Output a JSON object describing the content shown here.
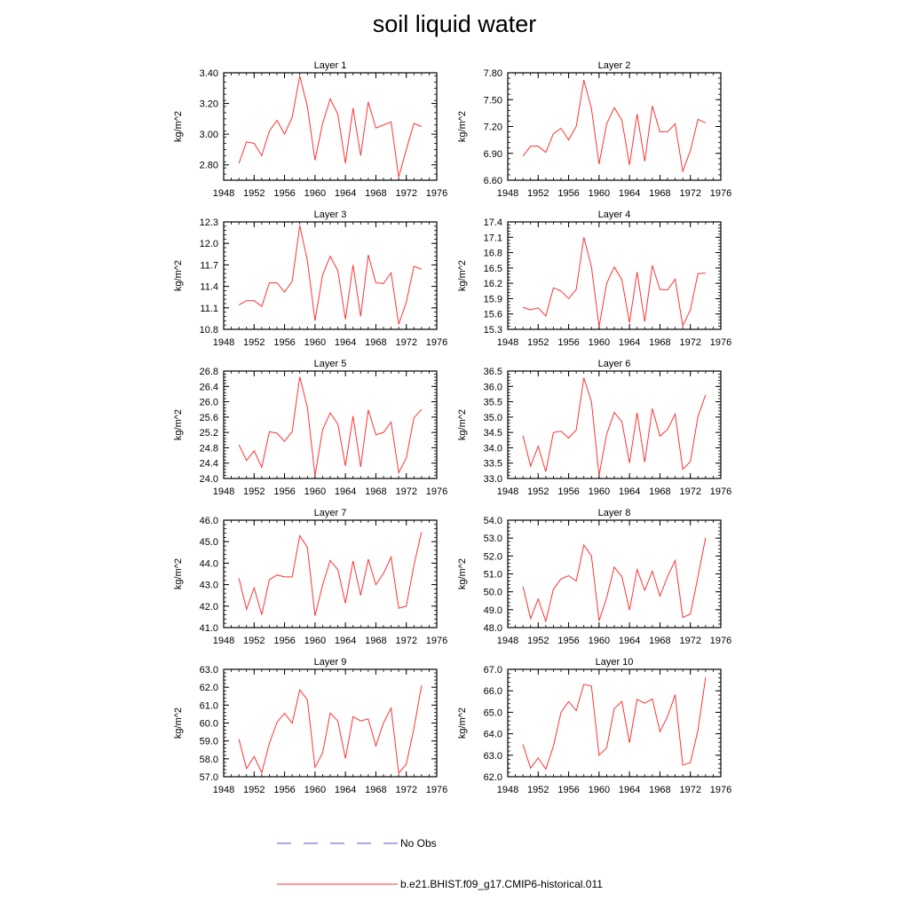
{
  "title": "soil liquid water",
  "legend": [
    {
      "label": "No Obs",
      "color": "#5555cc",
      "dash": "dashed"
    },
    {
      "label": "b.e21.BHIST.f09_g17.CMIP6-historical.011",
      "color": "#ff3333",
      "dash": "solid"
    }
  ],
  "chart_data": [
    {
      "type": "line",
      "title": "Layer 1",
      "ylabel": "kg/m^2",
      "xlim": [
        1948,
        1976
      ],
      "xticks": [
        "1948",
        "1952",
        "1956",
        "1960",
        "1964",
        "1968",
        "1972",
        "1976"
      ],
      "ylim": [
        2.7,
        3.4
      ],
      "yticks": [
        "2.80",
        "3.00",
        "3.20",
        "3.40"
      ],
      "x": [
        1950,
        1951,
        1952,
        1953,
        1954,
        1955,
        1956,
        1957,
        1958,
        1959,
        1960,
        1961,
        1962,
        1963,
        1964,
        1965,
        1966,
        1967,
        1968,
        1969,
        1970,
        1971,
        1972,
        1973,
        1974
      ],
      "series": [
        {
          "values": [
            2.81,
            2.95,
            2.94,
            2.86,
            3.02,
            3.09,
            3.0,
            3.11,
            3.38,
            3.18,
            2.83,
            3.07,
            3.23,
            3.13,
            2.81,
            3.17,
            2.86,
            3.21,
            3.04,
            3.06,
            3.08,
            2.72,
            2.9,
            3.07,
            3.05
          ]
        }
      ]
    },
    {
      "type": "line",
      "title": "Layer 2",
      "ylabel": "kg/m^2",
      "xlim": [
        1948,
        1976
      ],
      "xticks": [
        "1948",
        "1952",
        "1956",
        "1960",
        "1964",
        "1968",
        "1972",
        "1976"
      ],
      "ylim": [
        6.6,
        7.8
      ],
      "yticks": [
        "6.60",
        "6.90",
        "7.20",
        "7.50",
        "7.80"
      ],
      "x": [
        1950,
        1951,
        1952,
        1953,
        1954,
        1955,
        1956,
        1957,
        1958,
        1959,
        1960,
        1961,
        1962,
        1963,
        1964,
        1965,
        1966,
        1967,
        1968,
        1969,
        1970,
        1971,
        1972,
        1973,
        1974
      ],
      "series": [
        {
          "values": [
            6.87,
            6.98,
            6.98,
            6.91,
            7.12,
            7.18,
            7.05,
            7.2,
            7.72,
            7.4,
            6.78,
            7.23,
            7.41,
            7.27,
            6.77,
            7.34,
            6.81,
            7.43,
            7.14,
            7.14,
            7.23,
            6.7,
            6.93,
            7.28,
            7.24
          ]
        }
      ]
    },
    {
      "type": "line",
      "title": "Layer 3",
      "ylabel": "kg/m^2",
      "xlim": [
        1948,
        1976
      ],
      "xticks": [
        "1948",
        "1952",
        "1956",
        "1960",
        "1964",
        "1968",
        "1972",
        "1976"
      ],
      "ylim": [
        10.8,
        12.3
      ],
      "yticks": [
        "10.8",
        "11.1",
        "11.4",
        "11.7",
        "12.0",
        "12.3"
      ],
      "x": [
        1950,
        1951,
        1952,
        1953,
        1954,
        1955,
        1956,
        1957,
        1958,
        1959,
        1960,
        1961,
        1962,
        1963,
        1964,
        1965,
        1966,
        1967,
        1968,
        1969,
        1970,
        1971,
        1972,
        1973,
        1974
      ],
      "series": [
        {
          "values": [
            11.14,
            11.2,
            11.2,
            11.12,
            11.45,
            11.45,
            11.32,
            11.47,
            12.25,
            11.76,
            10.92,
            11.56,
            11.82,
            11.62,
            10.94,
            11.7,
            10.98,
            11.84,
            11.45,
            11.44,
            11.59,
            10.87,
            11.18,
            11.68,
            11.64
          ]
        }
      ]
    },
    {
      "type": "line",
      "title": "Layer 4",
      "ylabel": "kg/m^2",
      "xlim": [
        1948,
        1976
      ],
      "xticks": [
        "1948",
        "1952",
        "1956",
        "1960",
        "1964",
        "1968",
        "1972",
        "1976"
      ],
      "ylim": [
        15.3,
        17.4
      ],
      "yticks": [
        "15.3",
        "15.6",
        "15.9",
        "16.2",
        "16.5",
        "16.8",
        "17.1",
        "17.4"
      ],
      "x": [
        1950,
        1951,
        1952,
        1953,
        1954,
        1955,
        1956,
        1957,
        1958,
        1959,
        1960,
        1961,
        1962,
        1963,
        1964,
        1965,
        1966,
        1967,
        1968,
        1969,
        1970,
        1971,
        1972,
        1973,
        1974
      ],
      "series": [
        {
          "values": [
            15.73,
            15.68,
            15.72,
            15.56,
            16.11,
            16.05,
            15.9,
            16.08,
            17.1,
            16.52,
            15.35,
            16.2,
            16.52,
            16.27,
            15.43,
            16.42,
            15.45,
            16.55,
            16.08,
            16.07,
            16.28,
            15.37,
            15.68,
            16.39,
            16.4
          ]
        }
      ]
    },
    {
      "type": "line",
      "title": "Layer 5",
      "ylabel": "kg/m^2",
      "xlim": [
        1948,
        1976
      ],
      "xticks": [
        "1948",
        "1952",
        "1956",
        "1960",
        "1964",
        "1968",
        "1972",
        "1976"
      ],
      "ylim": [
        24.0,
        26.8
      ],
      "yticks": [
        "24.0",
        "24.4",
        "24.8",
        "25.2",
        "25.6",
        "26.0",
        "26.4",
        "26.8"
      ],
      "x": [
        1950,
        1951,
        1952,
        1953,
        1954,
        1955,
        1956,
        1957,
        1958,
        1959,
        1960,
        1961,
        1962,
        1963,
        1964,
        1965,
        1966,
        1967,
        1968,
        1969,
        1970,
        1971,
        1972,
        1973,
        1974
      ],
      "series": [
        {
          "values": [
            24.88,
            24.47,
            24.72,
            24.29,
            25.22,
            25.18,
            24.97,
            25.22,
            26.65,
            25.85,
            24.07,
            25.27,
            25.71,
            25.42,
            24.33,
            25.63,
            24.3,
            25.79,
            25.14,
            25.2,
            25.47,
            24.15,
            24.53,
            25.58,
            25.8
          ]
        }
      ]
    },
    {
      "type": "line",
      "title": "Layer 6",
      "ylabel": "kg/m^2",
      "xlim": [
        1948,
        1976
      ],
      "xticks": [
        "1948",
        "1952",
        "1956",
        "1960",
        "1964",
        "1968",
        "1972",
        "1976"
      ],
      "ylim": [
        33.0,
        36.5
      ],
      "yticks": [
        "33.0",
        "33.5",
        "34.0",
        "34.5",
        "35.0",
        "35.5",
        "36.0",
        "36.5"
      ],
      "x": [
        1950,
        1951,
        1952,
        1953,
        1954,
        1955,
        1956,
        1957,
        1958,
        1959,
        1960,
        1961,
        1962,
        1963,
        1964,
        1965,
        1966,
        1967,
        1968,
        1969,
        1970,
        1971,
        1972,
        1973,
        1974
      ],
      "series": [
        {
          "values": [
            34.4,
            33.4,
            34.05,
            33.22,
            34.5,
            34.54,
            34.32,
            34.58,
            36.28,
            35.5,
            33.1,
            34.44,
            35.15,
            34.85,
            33.5,
            35.14,
            33.53,
            35.28,
            34.38,
            34.6,
            35.1,
            33.3,
            33.55,
            35.02,
            35.73
          ]
        }
      ]
    },
    {
      "type": "line",
      "title": "Layer 7",
      "ylabel": "kg/m^2",
      "xlim": [
        1948,
        1976
      ],
      "xticks": [
        "1948",
        "1952",
        "1956",
        "1960",
        "1964",
        "1968",
        "1972",
        "1976"
      ],
      "ylim": [
        41.0,
        46.0
      ],
      "yticks": [
        "41.0",
        "42.0",
        "43.0",
        "44.0",
        "45.0",
        "46.0"
      ],
      "x": [
        1950,
        1951,
        1952,
        1953,
        1954,
        1955,
        1956,
        1957,
        1958,
        1959,
        1960,
        1961,
        1962,
        1963,
        1964,
        1965,
        1966,
        1967,
        1968,
        1969,
        1970,
        1971,
        1972,
        1973,
        1974
      ],
      "series": [
        {
          "values": [
            43.3,
            41.85,
            42.85,
            41.6,
            43.23,
            43.45,
            43.36,
            43.36,
            45.28,
            44.73,
            41.55,
            42.98,
            44.13,
            43.7,
            42.13,
            44.1,
            42.5,
            44.18,
            43.0,
            43.52,
            44.28,
            41.9,
            42.0,
            43.9,
            45.45
          ]
        }
      ]
    },
    {
      "type": "line",
      "title": "Layer 8",
      "ylabel": "kg/m^2",
      "xlim": [
        1948,
        1976
      ],
      "xticks": [
        "1948",
        "1952",
        "1956",
        "1960",
        "1964",
        "1968",
        "1972",
        "1976"
      ],
      "ylim": [
        48.0,
        54.0
      ],
      "yticks": [
        "48.0",
        "49.0",
        "50.0",
        "51.0",
        "52.0",
        "53.0",
        "54.0"
      ],
      "x": [
        1950,
        1951,
        1952,
        1953,
        1954,
        1955,
        1956,
        1957,
        1958,
        1959,
        1960,
        1961,
        1962,
        1963,
        1964,
        1965,
        1966,
        1967,
        1968,
        1969,
        1970,
        1971,
        1972,
        1973,
        1974
      ],
      "series": [
        {
          "values": [
            50.3,
            48.5,
            49.6,
            48.35,
            50.15,
            50.72,
            50.9,
            50.6,
            52.62,
            52.0,
            48.38,
            49.68,
            51.38,
            50.85,
            48.97,
            51.25,
            50.08,
            51.15,
            49.76,
            50.85,
            51.75,
            48.57,
            48.75,
            50.85,
            53.02
          ]
        }
      ]
    },
    {
      "type": "line",
      "title": "Layer 9",
      "ylabel": "kg/m^2",
      "xlim": [
        1948,
        1976
      ],
      "xticks": [
        "1948",
        "1952",
        "1956",
        "1960",
        "1964",
        "1968",
        "1972",
        "1976"
      ],
      "ylim": [
        57.0,
        63.0
      ],
      "yticks": [
        "57.0",
        "58.0",
        "59.0",
        "60.0",
        "61.0",
        "62.0",
        "63.0"
      ],
      "x": [
        1950,
        1951,
        1952,
        1953,
        1954,
        1955,
        1956,
        1957,
        1958,
        1959,
        1960,
        1961,
        1962,
        1963,
        1964,
        1965,
        1966,
        1967,
        1968,
        1969,
        1970,
        1971,
        1972,
        1973,
        1974
      ],
      "series": [
        {
          "values": [
            59.1,
            57.45,
            58.13,
            57.22,
            58.86,
            60.04,
            60.55,
            59.99,
            61.85,
            61.3,
            57.52,
            58.33,
            60.55,
            60.12,
            58.02,
            60.35,
            60.12,
            60.23,
            58.72,
            60.0,
            60.84,
            57.2,
            57.7,
            59.7,
            62.1
          ]
        }
      ]
    },
    {
      "type": "line",
      "title": "Layer 10",
      "ylabel": "kg/m^2",
      "xlim": [
        1948,
        1976
      ],
      "xticks": [
        "1948",
        "1952",
        "1956",
        "1960",
        "1964",
        "1968",
        "1972",
        "1976"
      ],
      "ylim": [
        62.0,
        67.0
      ],
      "yticks": [
        "62.0",
        "63.0",
        "64.0",
        "65.0",
        "66.0",
        "67.0"
      ],
      "x": [
        1950,
        1951,
        1952,
        1953,
        1954,
        1955,
        1956,
        1957,
        1958,
        1959,
        1960,
        1961,
        1962,
        1963,
        1964,
        1965,
        1966,
        1967,
        1968,
        1969,
        1970,
        1971,
        1972,
        1973,
        1974
      ],
      "series": [
        {
          "values": [
            63.5,
            62.4,
            62.88,
            62.35,
            63.42,
            65.0,
            65.5,
            65.08,
            66.3,
            66.22,
            63.0,
            63.35,
            65.17,
            65.5,
            63.58,
            65.6,
            65.42,
            65.62,
            64.1,
            64.8,
            65.82,
            62.55,
            62.65,
            64.17,
            66.62
          ]
        }
      ]
    }
  ]
}
